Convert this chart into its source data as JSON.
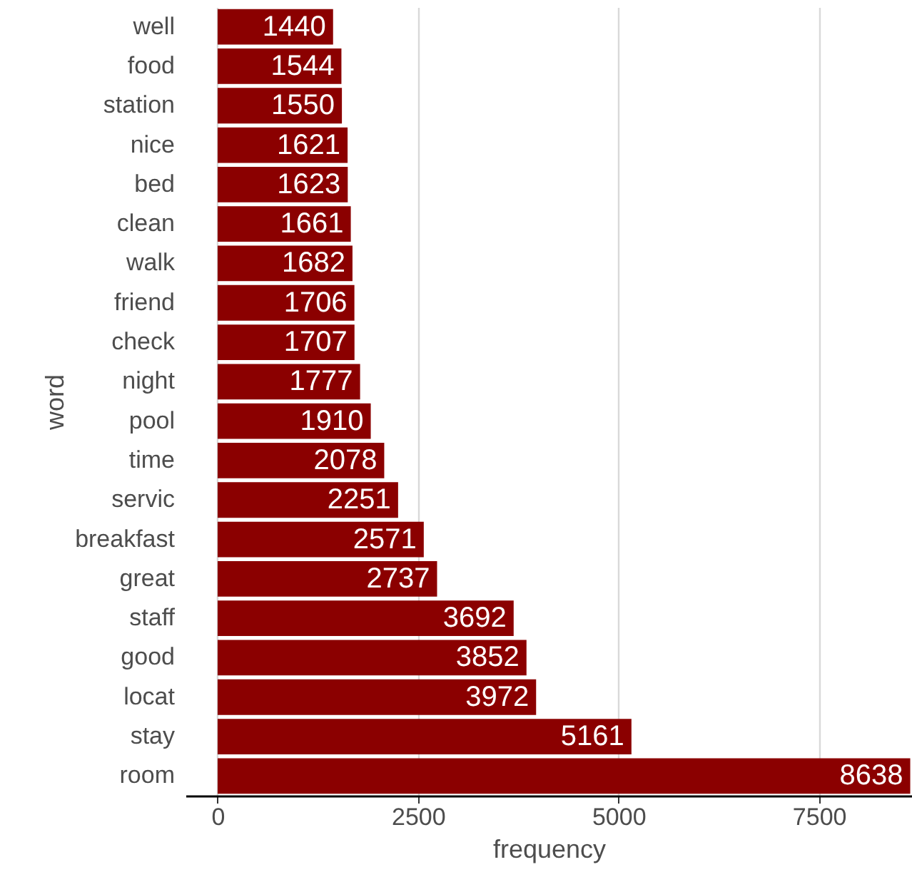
{
  "chart_data": {
    "type": "bar",
    "orientation": "horizontal",
    "xlabel": "frequency",
    "ylabel": "word",
    "categories": [
      "well",
      "food",
      "station",
      "nice",
      "bed",
      "clean",
      "walk",
      "friend",
      "check",
      "night",
      "pool",
      "time",
      "servic",
      "breakfast",
      "great",
      "staff",
      "good",
      "locat",
      "stay",
      "room"
    ],
    "values": [
      1440,
      1544,
      1550,
      1621,
      1623,
      1661,
      1682,
      1706,
      1707,
      1777,
      1910,
      2078,
      2251,
      2571,
      2737,
      3692,
      3852,
      3972,
      5161,
      8638
    ],
    "color": "#8b0000",
    "xlim": [
      -400,
      8660
    ],
    "xticks": [
      0,
      2500,
      5000,
      7500
    ],
    "grid": "x",
    "data_labels": true
  }
}
